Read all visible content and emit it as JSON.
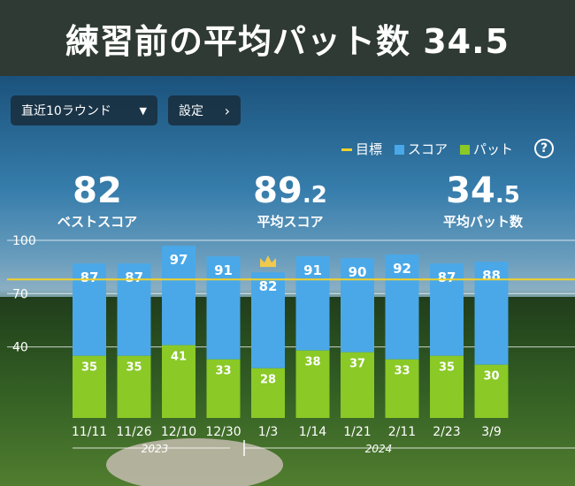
{
  "banner": {
    "title": "練習前の平均パット数 34.5"
  },
  "controls": {
    "round_select": "直近10ラウンド",
    "settings": "設定"
  },
  "legend": {
    "target": "目標",
    "score": "スコア",
    "putt": "パット",
    "help": "?"
  },
  "stats": [
    {
      "value": "82",
      "label": "ベストスコア"
    },
    {
      "value_int": "89",
      "value_dec": ".2",
      "label": "平均スコア"
    },
    {
      "value_int": "34",
      "value_dec": ".5",
      "label": "平均パット数"
    }
  ],
  "colors": {
    "score": "#4aa8e8",
    "putt": "#8ac926",
    "target": "#f2d02a"
  },
  "chart_data": {
    "type": "bar",
    "categories": [
      "11/11",
      "11/26",
      "12/10",
      "12/30",
      "1/3",
      "1/14",
      "1/21",
      "2/11",
      "2/23",
      "3/9"
    ],
    "series": [
      {
        "name": "スコア",
        "values": [
          87,
          87,
          97,
          91,
          82,
          91,
          90,
          92,
          87,
          88
        ]
      },
      {
        "name": "パット",
        "values": [
          35,
          35,
          41,
          33,
          28,
          38,
          37,
          33,
          35,
          30
        ]
      }
    ],
    "yticks": [
      "100",
      "70",
      "40"
    ],
    "ylim": [
      0,
      100
    ],
    "target": 78,
    "best_index": 4,
    "years": [
      "2023",
      "2024"
    ]
  }
}
